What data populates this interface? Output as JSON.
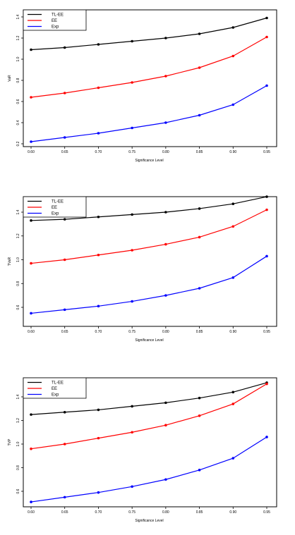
{
  "legend": [
    "TL-EE",
    "EE",
    "Exp"
  ],
  "colors": {
    "TL-EE": "#000000",
    "EE": "#ff0000",
    "Exp": "#0000ff"
  },
  "chart_data": [
    {
      "type": "line",
      "xlabel": "Significance Level",
      "ylabel": "VaR",
      "x": [
        0.6,
        0.65,
        0.7,
        0.75,
        0.8,
        0.85,
        0.9,
        0.95
      ],
      "xticks": [
        "0.60",
        "0.65",
        "0.70",
        "0.75",
        "0.80",
        "0.85",
        "0.90",
        "0.95"
      ],
      "ylim": [
        0.2,
        1.4
      ],
      "yticks": [
        "0.2",
        "0.4",
        "0.6",
        "0.8",
        "1.0",
        "1.2",
        "1.4"
      ],
      "legend_position": "top-left",
      "series": [
        {
          "name": "TL-EE",
          "values": [
            1.09,
            1.11,
            1.14,
            1.17,
            1.2,
            1.24,
            1.3,
            1.39
          ]
        },
        {
          "name": "EE",
          "values": [
            0.64,
            0.68,
            0.73,
            0.78,
            0.84,
            0.92,
            1.03,
            1.21
          ]
        },
        {
          "name": "Exp",
          "values": [
            0.22,
            0.26,
            0.3,
            0.35,
            0.4,
            0.47,
            0.57,
            0.75
          ]
        }
      ]
    },
    {
      "type": "line",
      "xlabel": "Significance Level",
      "ylabel": "TVaR",
      "x": [
        0.6,
        0.65,
        0.7,
        0.75,
        0.8,
        0.85,
        0.9,
        0.95
      ],
      "xticks": [
        "0.60",
        "0.65",
        "0.70",
        "0.75",
        "0.80",
        "0.85",
        "0.90",
        "0.95"
      ],
      "ylim": [
        0.5,
        1.5
      ],
      "yticks": [
        "0.6",
        "0.8",
        "1.0",
        "1.2",
        "1.4"
      ],
      "legend_position": "top-left",
      "series": [
        {
          "name": "TL-EE",
          "values": [
            1.33,
            1.34,
            1.36,
            1.38,
            1.4,
            1.43,
            1.47,
            1.53
          ]
        },
        {
          "name": "EE",
          "values": [
            0.97,
            1.0,
            1.04,
            1.08,
            1.13,
            1.19,
            1.28,
            1.42
          ]
        },
        {
          "name": "Exp",
          "values": [
            0.55,
            0.58,
            0.61,
            0.65,
            0.7,
            0.76,
            0.85,
            1.03
          ]
        }
      ]
    },
    {
      "type": "line",
      "xlabel": "Significance Level",
      "ylabel": "TVP",
      "x": [
        0.6,
        0.65,
        0.7,
        0.75,
        0.8,
        0.85,
        0.9,
        0.95
      ],
      "xticks": [
        "0.60",
        "0.65",
        "0.70",
        "0.75",
        "0.80",
        "0.85",
        "0.90",
        "0.95"
      ],
      "ylim": [
        0.5,
        1.5
      ],
      "yticks": [
        "0.6",
        "0.8",
        "1.0",
        "1.2",
        "1.4"
      ],
      "legend_position": "top-left",
      "series": [
        {
          "name": "TL-EE",
          "values": [
            1.25,
            1.27,
            1.29,
            1.32,
            1.35,
            1.39,
            1.44,
            1.52
          ]
        },
        {
          "name": "EE",
          "values": [
            0.96,
            1.0,
            1.05,
            1.1,
            1.16,
            1.24,
            1.34,
            1.51
          ]
        },
        {
          "name": "Exp",
          "values": [
            0.51,
            0.55,
            0.59,
            0.64,
            0.7,
            0.78,
            0.88,
            1.06
          ]
        }
      ]
    }
  ]
}
